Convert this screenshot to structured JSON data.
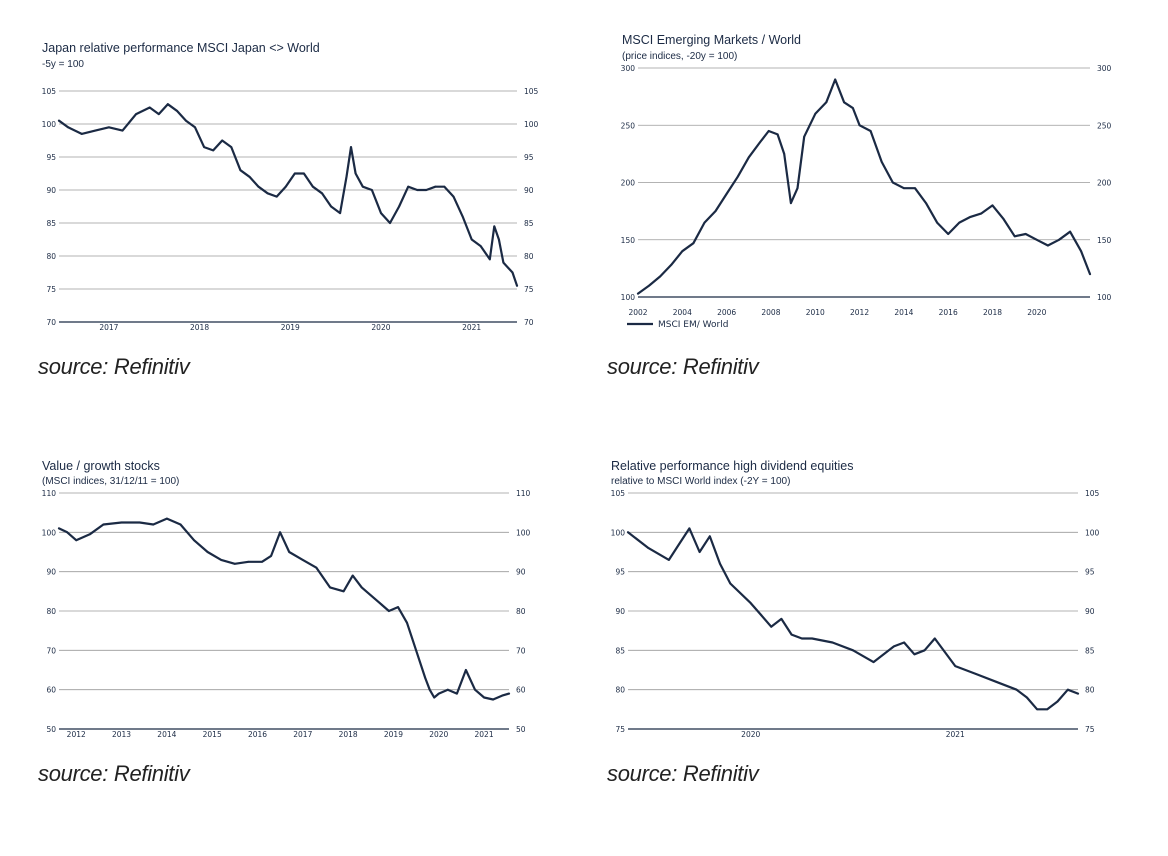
{
  "colors": {
    "line": "#1b2a44",
    "grid": "#9a9a9a",
    "text": "#1b2a44"
  },
  "chart_data": [
    {
      "type": "line",
      "title": "Japan relative performance MSCI Japan <> World",
      "subtitle": "-5y = 100",
      "source": "source: Refinitiv",
      "ylim": [
        70,
        105
      ],
      "yticks": [
        105,
        100,
        95,
        90,
        85,
        80,
        75,
        70
      ],
      "xlim": [
        2016.45,
        2021.5
      ],
      "xticks": [
        {
          "label": "2017",
          "v": 2017.0
        },
        {
          "label": "2018",
          "v": 2018.0
        },
        {
          "label": "2019",
          "v": 2019.0
        },
        {
          "label": "2020",
          "v": 2020.0
        },
        {
          "label": "2021",
          "v": 2021.0
        }
      ],
      "grid": true,
      "legend": null,
      "series": [
        {
          "x": [
            2016.45,
            2016.55,
            2016.7,
            2016.85,
            2017.0,
            2017.15,
            2017.3,
            2017.45,
            2017.55,
            2017.65,
            2017.75,
            2017.85,
            2017.95,
            2018.05,
            2018.15,
            2018.25,
            2018.35,
            2018.45,
            2018.55,
            2018.65,
            2018.75,
            2018.85,
            2018.95,
            2019.05,
            2019.15,
            2019.25,
            2019.35,
            2019.45,
            2019.55,
            2019.62,
            2019.67,
            2019.72,
            2019.8,
            2019.9,
            2020.0,
            2020.1,
            2020.2,
            2020.3,
            2020.4,
            2020.5,
            2020.6,
            2020.7,
            2020.8,
            2020.9,
            2021.0,
            2021.1,
            2021.2,
            2021.25,
            2021.3,
            2021.35,
            2021.45,
            2021.5
          ],
          "values": [
            100.5,
            99.5,
            98.5,
            99,
            99.5,
            99,
            101.5,
            102.5,
            101.5,
            103,
            102,
            100.5,
            99.5,
            96.5,
            96,
            97.5,
            96.5,
            93,
            92,
            90.5,
            89.5,
            89.0,
            90.5,
            92.5,
            92.5,
            90.5,
            89.5,
            87.5,
            86.5,
            92,
            96.5,
            92.5,
            90.5,
            90,
            86.5,
            85,
            87.5,
            90.5,
            90,
            90,
            90.5,
            90.5,
            89,
            86,
            82.5,
            81.5,
            79.5,
            84.5,
            82.5,
            79,
            77.5,
            75.5
          ]
        }
      ]
    },
    {
      "type": "line",
      "title": "MSCI Emerging Markets / World",
      "subtitle": "(price indices, -20y = 100)",
      "source": "source: Refinitiv",
      "ylim": [
        100,
        300
      ],
      "yticks": [
        300,
        250,
        200,
        150,
        100
      ],
      "xlim": [
        2002,
        2022.4
      ],
      "xticks": [
        {
          "label": "2002",
          "v": 2002
        },
        {
          "label": "2004",
          "v": 2004
        },
        {
          "label": "2006",
          "v": 2006
        },
        {
          "label": "2008",
          "v": 2008
        },
        {
          "label": "2010",
          "v": 2010
        },
        {
          "label": "2012",
          "v": 2012
        },
        {
          "label": "2014",
          "v": 2014
        },
        {
          "label": "2016",
          "v": 2016
        },
        {
          "label": "2018",
          "v": 2018
        },
        {
          "label": "2020",
          "v": 2020
        }
      ],
      "grid": true,
      "legend": "MSCI EM/ World",
      "series": [
        {
          "name": "MSCI EM/ World",
          "x": [
            2002.0,
            2002.5,
            2003.0,
            2003.5,
            2004.0,
            2004.5,
            2005.0,
            2005.5,
            2006.0,
            2006.5,
            2007.0,
            2007.5,
            2007.9,
            2008.3,
            2008.6,
            2008.9,
            2009.2,
            2009.5,
            2010.0,
            2010.5,
            2010.9,
            2011.3,
            2011.7,
            2012.0,
            2012.5,
            2013.0,
            2013.5,
            2014.0,
            2014.5,
            2015.0,
            2015.5,
            2016.0,
            2016.5,
            2017.0,
            2017.5,
            2018.0,
            2018.5,
            2019.0,
            2019.5,
            2020.0,
            2020.5,
            2021.0,
            2021.5,
            2022.0,
            2022.4
          ],
          "values": [
            103,
            110,
            118,
            128,
            140,
            147,
            165,
            175,
            190,
            205,
            222,
            235,
            245,
            242,
            225,
            182,
            195,
            240,
            260,
            270,
            290,
            270,
            265,
            250,
            245,
            218,
            200,
            195,
            195,
            182,
            165,
            155,
            165,
            170,
            173,
            180,
            168,
            153,
            155,
            150,
            145,
            150,
            157,
            140,
            120
          ]
        }
      ]
    },
    {
      "type": "line",
      "title": "Value / growth stocks",
      "subtitle": "(MSCI indices, 31/12/11 = 100)",
      "source": "source: Refinitiv",
      "ylim": [
        50,
        110
      ],
      "yticks": [
        110,
        100,
        90,
        80,
        70,
        60,
        50
      ],
      "xlim": [
        2011.62,
        2021.55
      ],
      "xticks": [
        {
          "label": "2012",
          "v": 2012
        },
        {
          "label": "2013",
          "v": 2013
        },
        {
          "label": "2014",
          "v": 2014
        },
        {
          "label": "2015",
          "v": 2015
        },
        {
          "label": "2016",
          "v": 2016
        },
        {
          "label": "2017",
          "v": 2017
        },
        {
          "label": "2018",
          "v": 2018
        },
        {
          "label": "2019",
          "v": 2019
        },
        {
          "label": "2020",
          "v": 2020
        },
        {
          "label": "2021",
          "v": 2021
        }
      ],
      "grid": true,
      "legend": null,
      "series": [
        {
          "x": [
            2011.62,
            2011.8,
            2012.0,
            2012.3,
            2012.6,
            2013.0,
            2013.4,
            2013.7,
            2014.0,
            2014.3,
            2014.6,
            2014.9,
            2015.2,
            2015.5,
            2015.8,
            2016.1,
            2016.3,
            2016.5,
            2016.7,
            2017.0,
            2017.3,
            2017.6,
            2017.9,
            2018.1,
            2018.3,
            2018.5,
            2018.7,
            2018.9,
            2019.1,
            2019.3,
            2019.5,
            2019.7,
            2019.8,
            2019.9,
            2020.0,
            2020.2,
            2020.4,
            2020.6,
            2020.8,
            2021.0,
            2021.2,
            2021.4,
            2021.55
          ],
          "values": [
            101,
            100,
            98,
            99.5,
            102,
            102.5,
            102.5,
            102,
            103.5,
            102,
            98,
            95,
            93,
            92,
            92.5,
            92.5,
            94,
            100,
            95,
            93,
            91,
            86,
            85,
            89,
            86,
            84,
            82,
            80,
            81,
            77,
            70,
            63,
            60,
            58,
            59,
            60,
            59,
            65,
            60,
            58,
            57.5,
            58.5,
            59
          ]
        }
      ]
    },
    {
      "type": "line",
      "title": "Relative performance high dividend equities",
      "subtitle": "relative to MSCI World index (-2Y = 100)",
      "source": "source: Refinitiv",
      "ylim": [
        75,
        105
      ],
      "yticks": [
        105,
        100,
        95,
        90,
        85,
        80,
        75
      ],
      "xlim": [
        2019.4,
        2021.6
      ],
      "xticks": [
        {
          "label": "2020",
          "v": 2020.0
        },
        {
          "label": "2021",
          "v": 2021.0
        }
      ],
      "grid": true,
      "legend": null,
      "series": [
        {
          "x": [
            2019.4,
            2019.5,
            2019.6,
            2019.65,
            2019.7,
            2019.75,
            2019.8,
            2019.85,
            2019.9,
            2020.0,
            2020.05,
            2020.1,
            2020.15,
            2020.2,
            2020.25,
            2020.3,
            2020.4,
            2020.5,
            2020.6,
            2020.7,
            2020.75,
            2020.8,
            2020.85,
            2020.9,
            2021.0,
            2021.1,
            2021.2,
            2021.3,
            2021.35,
            2021.4,
            2021.45,
            2021.5,
            2021.55,
            2021.6
          ],
          "values": [
            100,
            98,
            96.5,
            98.5,
            100.5,
            97.5,
            99.5,
            96,
            93.5,
            91,
            89.5,
            88,
            89,
            87,
            86.5,
            86.5,
            86,
            85,
            83.5,
            85.5,
            86,
            84.5,
            85,
            86.5,
            83,
            82,
            81,
            80,
            79,
            77.5,
            77.5,
            78.5,
            80,
            79.5
          ]
        }
      ]
    }
  ]
}
